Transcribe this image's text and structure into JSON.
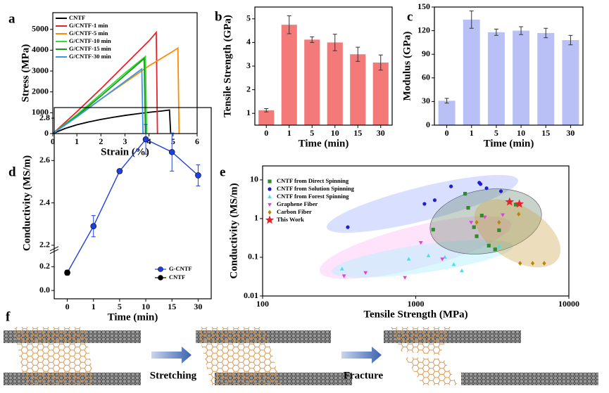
{
  "chart_data": [
    {
      "type": "line",
      "panel": "a",
      "xlabel": "Strain (%)",
      "ylabel": "Stress (MPa)",
      "xlim": [
        0,
        6
      ],
      "xticks": [
        0,
        1,
        2,
        3,
        4,
        5,
        6
      ],
      "ylim": [
        0,
        5800
      ],
      "yticks": [
        0,
        1000,
        2000,
        3000,
        4000,
        5000
      ],
      "legend": "upper left",
      "series": [
        {
          "name": "CNTF",
          "color": "#000000",
          "x": [
            0,
            0.5,
            1,
            1.5,
            2,
            2.5,
            3,
            3.5,
            4,
            4.5,
            4.85,
            4.9
          ],
          "values": [
            0,
            240,
            420,
            560,
            680,
            780,
            870,
            950,
            1020,
            1080,
            1130,
            0
          ]
        },
        {
          "name": "G/CNTF-1 min",
          "color": "#e8202a",
          "x": [
            0,
            1,
            2,
            3,
            4,
            4.3,
            4.35
          ],
          "values": [
            0,
            1050,
            2150,
            3300,
            4450,
            4850,
            0
          ]
        },
        {
          "name": "G/CNTF-5 min",
          "color": "#ff8c00",
          "x": [
            0,
            1,
            2,
            3,
            4,
            5,
            5.2,
            5.25
          ],
          "values": [
            0,
            850,
            1650,
            2450,
            3250,
            3950,
            4100,
            0
          ]
        },
        {
          "name": "G/CNTF-10 min",
          "color": "#33dd33",
          "x": [
            0,
            1,
            2,
            3,
            3.85,
            3.9
          ],
          "values": [
            0,
            900,
            1900,
            2900,
            3700,
            0
          ]
        },
        {
          "name": "G/CNTF-15 min",
          "color": "#1a9a1a",
          "x": [
            0,
            1,
            2,
            3,
            3.8,
            3.85
          ],
          "values": [
            0,
            850,
            1800,
            2800,
            3600,
            0
          ]
        },
        {
          "name": "G/CNTF-30 min",
          "color": "#3399ee",
          "x": [
            0,
            1,
            2,
            3,
            3.7,
            3.75
          ],
          "values": [
            0,
            800,
            1650,
            2500,
            3100,
            0
          ]
        }
      ]
    },
    {
      "type": "bar",
      "panel": "b",
      "xlabel": "Time (min)",
      "ylabel": "Tensile Strength (GPa)",
      "color": "#f47a7a",
      "categories": [
        "0",
        "1",
        "5",
        "10",
        "15",
        "30"
      ],
      "values": [
        1.13,
        4.75,
        4.12,
        4.0,
        3.5,
        3.15
      ],
      "errors": [
        0.07,
        0.38,
        0.12,
        0.35,
        0.3,
        0.32
      ],
      "ylim": [
        0.5,
        5.5
      ],
      "yticks": [
        1,
        2,
        3,
        4,
        5
      ]
    },
    {
      "type": "bar",
      "panel": "c",
      "xlabel": "Time (min)",
      "ylabel": "Modulus (GPa)",
      "color": "#b9c0f6",
      "categories": [
        "0",
        "1",
        "5",
        "10",
        "15",
        "30"
      ],
      "values": [
        31,
        134,
        118,
        120,
        117,
        108
      ],
      "errors": [
        3,
        11,
        4,
        5,
        6,
        6
      ],
      "ylim": [
        0,
        150
      ],
      "yticks": [
        0,
        30,
        60,
        90,
        120,
        150
      ]
    },
    {
      "type": "broken_line",
      "panel": "d",
      "xlabel": "Time (min)",
      "ylabel": "Conductivity (MS/m)",
      "legend": "lower right",
      "categories": [
        "0",
        "1",
        "5",
        "10",
        "15",
        "30"
      ],
      "series": [
        {
          "name": "G-CNTF",
          "color": "#1f3fe0",
          "values": [
            0.15,
            2.29,
            2.55,
            2.7,
            2.64,
            2.53
          ],
          "errors": [
            0.02,
            0.05,
            0.01,
            0.07,
            0.09,
            0.05
          ]
        },
        {
          "name": "CNTF",
          "color": "#000000",
          "values": [
            0.15,
            null,
            null,
            null,
            null,
            null
          ],
          "errors": [
            0.02,
            null,
            null,
            null,
            null,
            null
          ]
        }
      ],
      "ylim": [
        -0.07,
        2.85
      ],
      "ybreak": [
        0.3,
        2.2
      ],
      "yticks": [
        {
          "value": 0,
          "label": "0.0"
        },
        0.2,
        2.2,
        2.4,
        2.6,
        2.8
      ]
    },
    {
      "type": "scatter",
      "panel": "e",
      "xlabel": "Tensile Strength (MPa)",
      "ylabel": "Conductivity (MS/m)",
      "log": true,
      "legend": "upper left",
      "xlim": [
        100,
        10000
      ],
      "xticks": [
        100,
        1000,
        10000
      ],
      "ylim": [
        0.01,
        23
      ],
      "yticks": [
        0.01,
        0.1,
        1,
        10
      ],
      "series": [
        {
          "name": "CNTF from Direct Spinning",
          "color": "#2e8b2e",
          "marker": "square",
          "x": [
            2100,
            2200,
            1300,
            2500,
            2700,
            3500,
            3300,
            3000,
            4500,
            2400
          ],
          "values": [
            4.4,
            1.9,
            0.52,
            0.35,
            1.2,
            0.5,
            0.16,
            0.2,
            2.3,
            0.6
          ]
        },
        {
          "name": "CNTF from Solution Spinning",
          "color": "#1f1fd0",
          "marker": "circle",
          "x": [
            360,
            1140,
            1330,
            1700,
            2600,
            2650,
            2900,
            3600
          ],
          "values": [
            0.6,
            2.4,
            3,
            6.8,
            8.5,
            7.8,
            6.1,
            5.1
          ]
        },
        {
          "name": "CNTF from Forest Spinning",
          "color": "#40e0f0",
          "marker": "triangle",
          "x": [
            330,
            900,
            1210,
            1550,
            1770,
            2000,
            3500
          ],
          "values": [
            0.05,
            0.09,
            0.11,
            0.1,
            0.065,
            0.045,
            0.19
          ]
        },
        {
          "name": "Graphene Fiber",
          "color": "#e040e0",
          "marker": "triangle-down",
          "x": [
            340,
            470,
            850,
            1080,
            1490,
            2300,
            2830,
            3700
          ],
          "values": [
            0.033,
            0.04,
            0.03,
            0.24,
            0.09,
            0.8,
            1.1,
            1.25
          ]
        },
        {
          "name": "Carbon Fiber",
          "color": "#b8860b",
          "marker": "diamond",
          "x": [
            2500,
            3500,
            4700,
            4800,
            5800,
            6900
          ],
          "values": [
            0.8,
            0.8,
            1.3,
            0.07,
            0.07,
            0.07
          ]
        },
        {
          "name": "This Work",
          "color": "#e8202a",
          "marker": "star",
          "x": [
            4100,
            4750
          ],
          "values": [
            2.7,
            2.4
          ]
        }
      ]
    }
  ],
  "diagram": {
    "panel": "f",
    "labels": [
      "Stretching",
      "Fracture"
    ]
  }
}
